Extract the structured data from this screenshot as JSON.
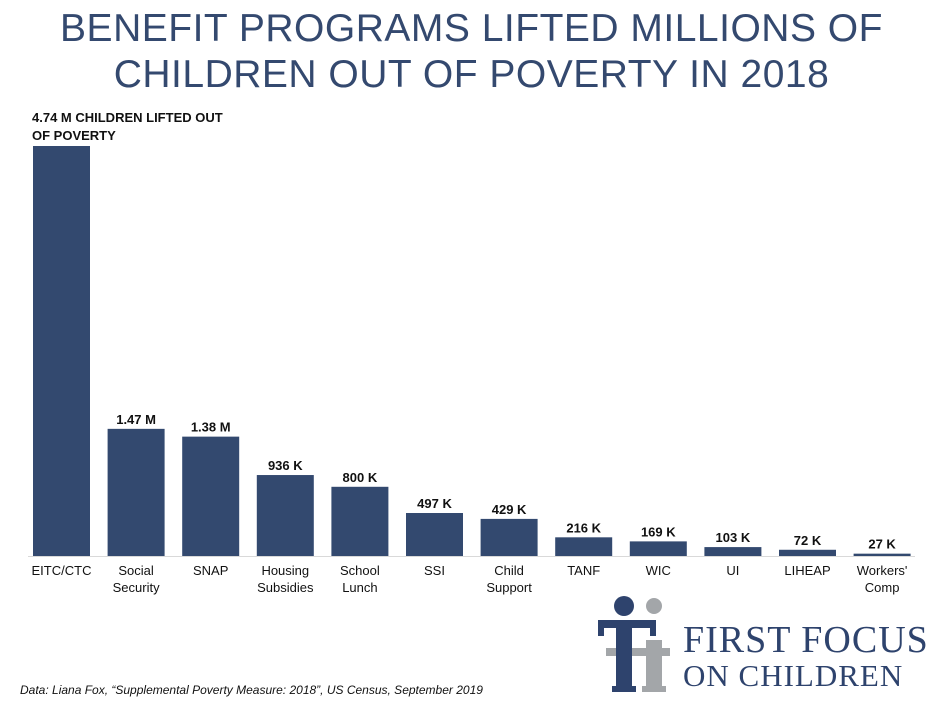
{
  "title": {
    "line1": "BENEFIT PROGRAMS LIFTED MILLIONS OF",
    "line2": "CHILDREN OUT OF POVERTY IN 2018"
  },
  "chart_data": {
    "type": "bar",
    "title": "BENEFIT PROGRAMS LIFTED MILLIONS OF CHILDREN OUT OF POVERTY IN 2018",
    "categories": [
      [
        "EITC/CTC"
      ],
      [
        "Social",
        "Security"
      ],
      [
        "SNAP"
      ],
      [
        "Housing",
        "Subsidies"
      ],
      [
        "School",
        "Lunch"
      ],
      [
        "SSI"
      ],
      [
        "Child",
        "Support"
      ],
      [
        "TANF"
      ],
      [
        "WIC"
      ],
      [
        "UI"
      ],
      [
        "LIHEAP"
      ],
      [
        "Workers'",
        "Comp"
      ]
    ],
    "values": [
      4740000,
      1470000,
      1380000,
      936000,
      800000,
      497000,
      429000,
      216000,
      169000,
      103000,
      72000,
      27000
    ],
    "value_labels": [
      [
        "4.74 M CHILDREN LIFTED OUT",
        "OF POVERTY"
      ],
      [
        "1.47 M"
      ],
      [
        "1.38 M"
      ],
      [
        "936 K"
      ],
      [
        "800 K"
      ],
      [
        "497 K"
      ],
      [
        "429 K"
      ],
      [
        "216 K"
      ],
      [
        "169 K"
      ],
      [
        "103 K"
      ],
      [
        "72 K"
      ],
      [
        "27 K"
      ]
    ],
    "xlabel": "",
    "ylabel": "",
    "ylim": [
      0,
      4740000
    ],
    "grid": false,
    "bar_color": "#33496f"
  },
  "footer": {
    "source": "Data: Liana Fox, “Supplemental Poverty Measure: 2018”,  US Census, September 2019"
  },
  "logo": {
    "line1": "FIRST FOCUS",
    "line2": "ON CHILDREN",
    "colors": {
      "navy": "#2e436d",
      "gray": "#a3a6a9"
    }
  }
}
